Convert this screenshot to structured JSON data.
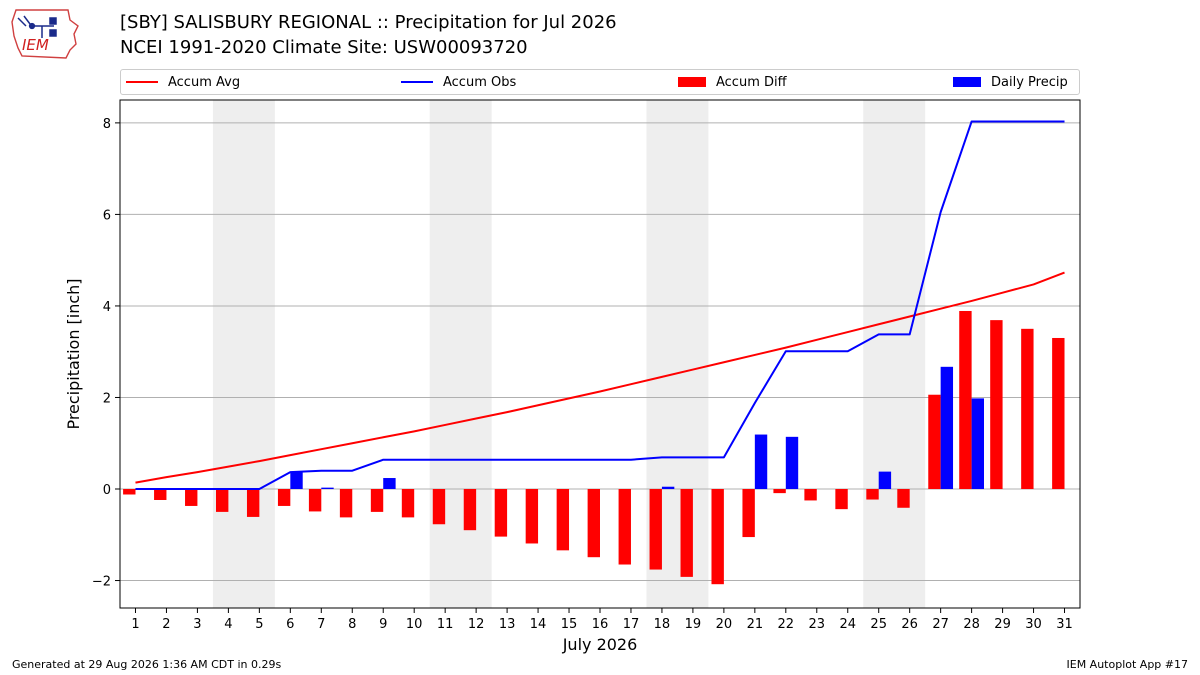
{
  "header": {
    "title_line1": "[SBY] SALISBURY REGIONAL :: Precipitation for Jul 2026",
    "title_line2": "NCEI 1991-2020 Climate Site: USW00093720",
    "logo_text": "IEM"
  },
  "footer": {
    "left": "Generated at 29 Aug 2026 1:36 AM CDT in 0.29s",
    "right": "IEM Autoplot App #17"
  },
  "colors": {
    "avg": "#ff0000",
    "obs": "#0000ff",
    "diff": "#ff0000",
    "daily": "#0000ff",
    "weekend": "#eeeeee",
    "grid": "#b0b0b0"
  },
  "chart_data": {
    "type": "bar",
    "xlabel": "July 2026",
    "ylabel": "Precipitation [inch]",
    "ylim": [
      -2.6,
      8.5
    ],
    "xlim": [
      0.5,
      31.5
    ],
    "yticks": [
      -2,
      0,
      2,
      4,
      6,
      8
    ],
    "ytick_labels": [
      "−2",
      "0",
      "2",
      "4",
      "6",
      "8"
    ],
    "grid": "horizontal",
    "legend_placement": "top",
    "weekend_spans": [
      [
        3.5,
        5.5
      ],
      [
        10.5,
        12.5
      ],
      [
        17.5,
        19.5
      ],
      [
        24.5,
        26.5
      ]
    ],
    "x": [
      1,
      2,
      3,
      4,
      5,
      6,
      7,
      8,
      9,
      10,
      11,
      12,
      13,
      14,
      15,
      16,
      17,
      18,
      19,
      20,
      21,
      22,
      23,
      24,
      25,
      26,
      27,
      28,
      29,
      30,
      31
    ],
    "series": [
      {
        "name": "Accum Avg",
        "kind": "line",
        "values": [
          0.14,
          0.26,
          0.37,
          0.49,
          0.61,
          0.74,
          0.87,
          1.0,
          1.13,
          1.26,
          1.4,
          1.54,
          1.68,
          1.83,
          1.98,
          2.13,
          2.29,
          2.45,
          2.61,
          2.77,
          2.93,
          3.09,
          3.26,
          3.43,
          3.6,
          3.77,
          3.94,
          4.11,
          4.29,
          4.47,
          4.73
        ]
      },
      {
        "name": "Accum Obs",
        "kind": "line",
        "values": [
          0,
          0,
          0,
          0,
          0,
          0.37,
          0.4,
          0.4,
          0.64,
          0.64,
          0.64,
          0.64,
          0.64,
          0.64,
          0.64,
          0.64,
          0.64,
          0.69,
          0.69,
          0.69,
          1.88,
          3.01,
          3.01,
          3.01,
          3.38,
          3.38,
          6.05,
          8.03,
          8.03,
          8.03,
          8.03
        ]
      },
      {
        "name": "Accum Diff",
        "kind": "bar",
        "values": [
          -0.12,
          -0.24,
          -0.37,
          -0.5,
          -0.61,
          -0.37,
          -0.49,
          -0.62,
          -0.5,
          -0.62,
          -0.77,
          -0.9,
          -1.04,
          -1.19,
          -1.34,
          -1.49,
          -1.65,
          -1.76,
          -1.92,
          -2.08,
          -1.05,
          -0.09,
          -0.25,
          -0.44,
          -0.23,
          -0.41,
          2.06,
          3.89,
          3.69,
          3.5,
          3.3
        ]
      },
      {
        "name": "Daily Precip",
        "kind": "bar",
        "values": [
          0,
          0,
          0,
          0,
          0,
          0.37,
          0.03,
          0,
          0.24,
          0,
          0,
          0,
          0,
          0,
          0,
          0,
          0,
          0.05,
          0,
          0,
          1.19,
          1.14,
          0,
          0,
          0.38,
          0,
          2.67,
          1.98,
          0,
          0,
          0
        ]
      }
    ]
  }
}
